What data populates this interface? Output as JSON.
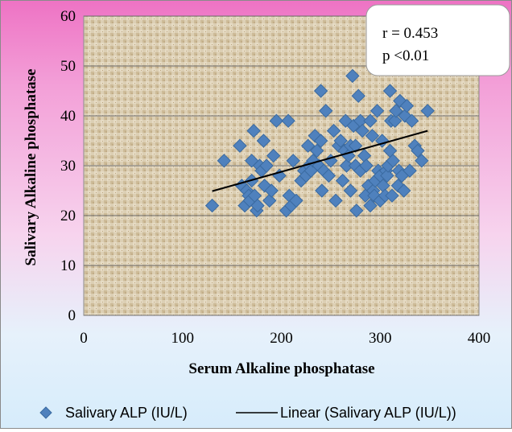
{
  "chart_data": {
    "type": "scatter",
    "xlabel": "Serum Alkaline phosphatase",
    "ylabel": "Salivary Alkaline phosphatase",
    "xlim": [
      0,
      400
    ],
    "ylim": [
      0,
      60
    ],
    "x_ticks": [
      "0",
      "100",
      "200",
      "300",
      "400"
    ],
    "y_ticks": [
      "0",
      "10",
      "20",
      "30",
      "40",
      "50",
      "60"
    ],
    "grid": true,
    "legend_position": "bottom",
    "annotations": [
      "r = 0.453",
      "p <0.01"
    ],
    "series": [
      {
        "name": "Salivary ALP (IU/L)",
        "marker": "diamond",
        "color": "#4f81bd",
        "x": [
          130,
          142,
          158,
          160,
          163,
          165,
          167,
          168,
          170,
          170,
          172,
          173,
          175,
          176,
          178,
          180,
          182,
          183,
          185,
          188,
          190,
          192,
          195,
          198,
          205,
          207,
          208,
          210,
          212,
          215,
          220,
          223,
          225,
          227,
          228,
          230,
          232,
          234,
          236,
          238,
          240,
          240,
          241,
          243,
          245,
          248,
          250,
          253,
          255,
          258,
          260,
          262,
          264,
          265,
          266,
          268,
          270,
          270,
          272,
          273,
          275,
          275,
          276,
          278,
          280,
          280,
          282,
          284,
          285,
          286,
          288,
          290,
          290,
          292,
          293,
          294,
          295,
          297,
          298,
          300,
          300,
          302,
          303,
          305,
          306,
          307,
          308,
          310,
          310,
          311,
          312,
          313,
          315,
          316,
          318,
          319,
          320,
          322,
          324,
          325,
          327,
          330,
          332,
          335,
          338,
          342,
          348
        ],
        "y": [
          22,
          31,
          34,
          26,
          22,
          25,
          24,
          23,
          31,
          27,
          37,
          24,
          21,
          22,
          30,
          29,
          35,
          26,
          30,
          23,
          25,
          32,
          39,
          28,
          21,
          39,
          24,
          22,
          31,
          23,
          27,
          29,
          28,
          34,
          30,
          29,
          31,
          36,
          33,
          30,
          45,
          35,
          25,
          29,
          41,
          28,
          31,
          37,
          23,
          34,
          35,
          27,
          33,
          39,
          30,
          32,
          34,
          25,
          48,
          38,
          30,
          34,
          21,
          44,
          29,
          39,
          37,
          32,
          24,
          30,
          26,
          22,
          39,
          36,
          25,
          24,
          27,
          41,
          29,
          28,
          23,
          35,
          26,
          24,
          29,
          28,
          30,
          45,
          33,
          39,
          24,
          31,
          39,
          41,
          26,
          29,
          43,
          28,
          25,
          40,
          42,
          29,
          39,
          34,
          33,
          31,
          41
        ]
      },
      {
        "name": "Linear (Salivary ALP (IU/L))",
        "type": "line",
        "color": "#000000",
        "x": [
          130,
          348
        ],
        "y": [
          24.9,
          37.0
        ]
      }
    ]
  }
}
